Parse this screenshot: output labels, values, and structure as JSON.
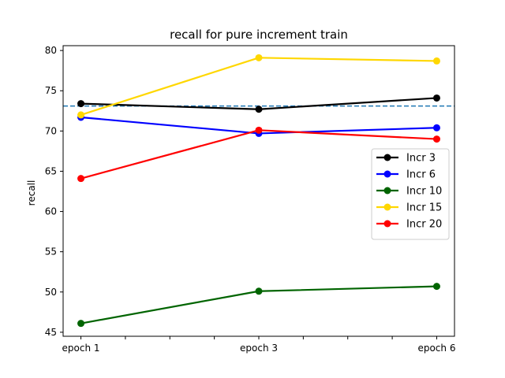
{
  "chart_data": {
    "type": "line",
    "title": "recall for pure increment train",
    "xlabel": "",
    "ylabel": "recall",
    "x": [
      1,
      2,
      3,
      4,
      5,
      6,
      7,
      8,
      9
    ],
    "x_tick_labels": [
      "epoch 1",
      "epoch 3",
      "epoch 6"
    ],
    "x_tick_positions": [
      1,
      5,
      9
    ],
    "xlim": [
      0.6,
      9.4
    ],
    "ylim": [
      44.5,
      80.6
    ],
    "yticks": [
      45,
      50,
      55,
      60,
      65,
      70,
      75,
      80
    ],
    "grid": false,
    "legend_position": "center-right",
    "baseline": {
      "value": 73.1,
      "color": "#1f77b4",
      "style": "dashed"
    },
    "series": [
      {
        "name": "Incr 3",
        "color": "#000000",
        "x": [
          1,
          5,
          9
        ],
        "values": [
          73.4,
          72.7,
          74.1
        ]
      },
      {
        "name": "Incr 6",
        "color": "#0000ff",
        "x": [
          1,
          5,
          9
        ],
        "values": [
          71.7,
          69.7,
          70.4
        ]
      },
      {
        "name": "Incr 10",
        "color": "#006400",
        "x": [
          1,
          5,
          9
        ],
        "values": [
          46.1,
          50.1,
          50.7
        ]
      },
      {
        "name": "Incr 15",
        "color": "#ffd700",
        "x": [
          1,
          5,
          9
        ],
        "values": [
          72.0,
          79.1,
          78.7
        ]
      },
      {
        "name": "Incr 20",
        "color": "#ff0000",
        "x": [
          1,
          5,
          9
        ],
        "values": [
          64.1,
          70.1,
          69.0
        ]
      }
    ]
  }
}
